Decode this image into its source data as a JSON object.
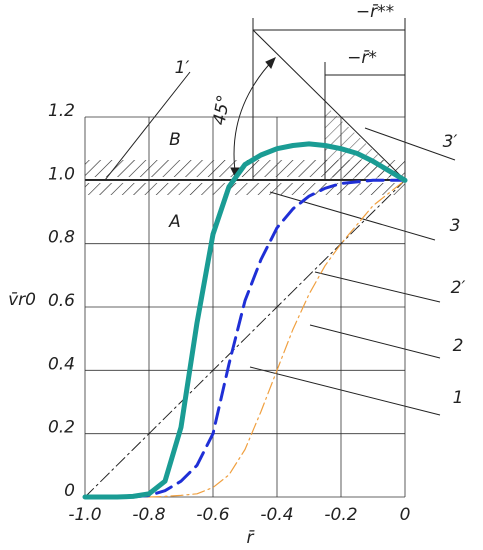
{
  "chart_data": {
    "type": "line",
    "x_label": "r̄",
    "y_label": "v̄r0",
    "xlim": [
      -1,
      0
    ],
    "ylim": [
      0,
      1.2
    ],
    "xticks": [
      {
        "value": -1,
        "label": "-1.0"
      },
      -0.8,
      -0.6,
      -0.4,
      -0.2,
      0
    ],
    "yticks": [
      0,
      0.2,
      0.4,
      0.6,
      0.8,
      {
        "value": 1,
        "label": "1.0"
      },
      1.2
    ],
    "grid": true,
    "x": [
      -1,
      -0.95,
      -0.9,
      -0.85,
      -0.8,
      -0.75,
      -0.7,
      -0.65,
      -0.6,
      -0.55,
      -0.5,
      -0.45,
      -0.4,
      -0.35,
      -0.3,
      -0.25,
      -0.2,
      -0.15,
      -0.1,
      -0.05,
      0
    ],
    "series": [
      {
        "color": "#1a9c94",
        "line_style": "solid",
        "width": 5,
        "values": [
          0,
          0,
          0,
          0.002,
          0.01,
          0.05,
          0.22,
          0.55,
          0.83,
          0.98,
          1.05,
          1.08,
          1.1,
          1.11,
          1.115,
          1.11,
          1.1,
          1.085,
          1.06,
          1.03,
          1.0
        ]
      },
      {
        "color": "#1f2fd6",
        "line_style": "dashed",
        "width": 3,
        "values": [
          null,
          null,
          null,
          0,
          0.005,
          0.02,
          0.05,
          0.1,
          0.2,
          0.42,
          0.62,
          0.75,
          0.85,
          0.91,
          0.95,
          0.975,
          0.99,
          0.995,
          1.0,
          1.0,
          1.0
        ]
      },
      {
        "color": "#f0a040",
        "line_style": "dashdot",
        "width": 1.2,
        "values": [
          null,
          null,
          null,
          null,
          0,
          0.002,
          0.005,
          0.01,
          0.03,
          0.07,
          0.15,
          0.27,
          0.4,
          0.53,
          0.64,
          0.73,
          0.8,
          0.86,
          0.92,
          0.96,
          1.0
        ]
      },
      {
        "color": "#222222",
        "line_style": "dashdot",
        "width": 1,
        "values": [
          0,
          0.05,
          0.1,
          0.15,
          0.2,
          0.25,
          0.3,
          0.35,
          0.4,
          0.45,
          0.5,
          0.55,
          0.6,
          0.65,
          0.7,
          0.75,
          0.8,
          0.85,
          0.9,
          0.95,
          1.0
        ]
      }
    ],
    "annotations": [
      "1′",
      "3′",
      "3",
      "2′",
      "2",
      "1",
      "A",
      "B",
      "45°",
      "−r̄**",
      "−r̄*"
    ]
  }
}
